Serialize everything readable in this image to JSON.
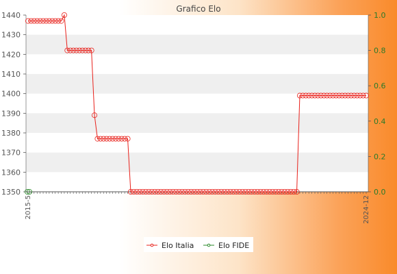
{
  "chart_data": {
    "type": "line",
    "title": "Grafico Elo",
    "xlabel": "",
    "ylabel": "",
    "ylim": [
      1350,
      1440
    ],
    "y_ticks": [
      1350,
      1360,
      1370,
      1380,
      1390,
      1400,
      1410,
      1420,
      1430,
      1440
    ],
    "y2lim": [
      0.0,
      1.0
    ],
    "y2_ticks": [
      "0.0",
      "0.2",
      "0.4",
      "0.6",
      "0.8",
      "1.0"
    ],
    "x_tick_labels": [
      "2015-5",
      "2024-12"
    ],
    "grid": "horizontal bands",
    "legend_position": "bottom-center",
    "colors": {
      "elo_italia": "#e8201a",
      "elo_fide": "#2a8a2a",
      "band": "#efefef",
      "plot_bg": "#ffffff"
    },
    "series": [
      {
        "name": "Elo Italia",
        "axis": "left",
        "values": [
          1437,
          1437,
          1437,
          1437,
          1437,
          1437,
          1437,
          1437,
          1437,
          1437,
          1437,
          1437,
          1440,
          1422,
          1422,
          1422,
          1422,
          1422,
          1422,
          1422,
          1422,
          1422,
          1389,
          1377,
          1377,
          1377,
          1377,
          1377,
          1377,
          1377,
          1377,
          1377,
          1377,
          1377,
          1350,
          1350,
          1350,
          1350,
          1350,
          1350,
          1350,
          1350,
          1350,
          1350,
          1350,
          1350,
          1350,
          1350,
          1350,
          1350,
          1350,
          1350,
          1350,
          1350,
          1350,
          1350,
          1350,
          1350,
          1350,
          1350,
          1350,
          1350,
          1350,
          1350,
          1350,
          1350,
          1350,
          1350,
          1350,
          1350,
          1350,
          1350,
          1350,
          1350,
          1350,
          1350,
          1350,
          1350,
          1350,
          1350,
          1350,
          1350,
          1350,
          1350,
          1350,
          1350,
          1350,
          1350,
          1350,
          1350,
          1399,
          1399,
          1399,
          1399,
          1399,
          1399,
          1399,
          1399,
          1399,
          1399,
          1399,
          1399,
          1399,
          1399,
          1399,
          1399,
          1399,
          1399,
          1399,
          1399,
          1399,
          1399,
          1399
        ]
      },
      {
        "name": "Elo FIDE",
        "axis": "right",
        "values": [
          0,
          0
        ]
      }
    ]
  }
}
